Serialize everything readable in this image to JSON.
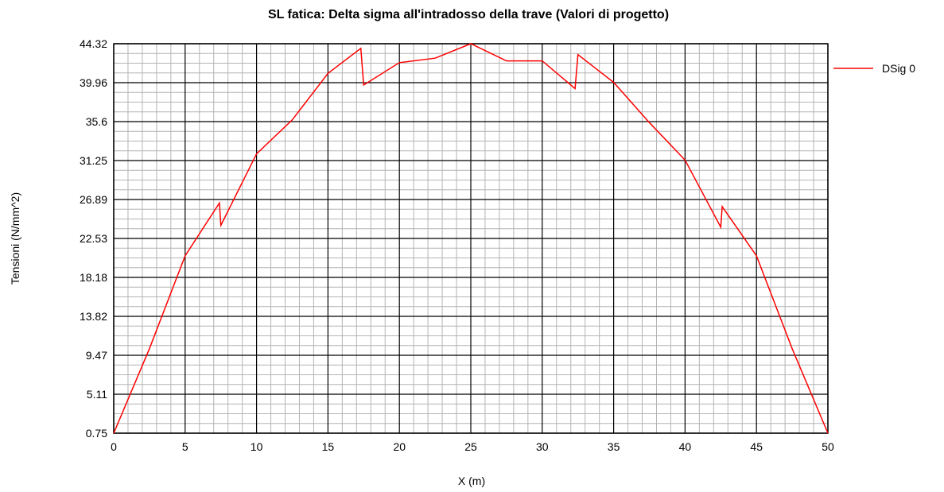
{
  "chart_data": {
    "type": "line",
    "title": "SL fatica: Delta sigma all'intradosso della trave (Valori di progetto)",
    "xlabel": "X (m)",
    "ylabel": "Tensioni (N/mm^2)",
    "xlim": [
      0,
      50
    ],
    "ylim": [
      0.75,
      44.32
    ],
    "x_ticks": [
      "0",
      "5",
      "10",
      "15",
      "20",
      "25",
      "30",
      "35",
      "40",
      "45",
      "50"
    ],
    "y_ticks": [
      "0.75",
      "5.11",
      "9.47",
      "13.82",
      "18.18",
      "22.53",
      "26.89",
      "31.25",
      "35.6",
      "39.96",
      "44.32"
    ],
    "grid": true,
    "legend_position": "top-right",
    "series": [
      {
        "name": "DSig 0",
        "color": "#ff0000",
        "x": [
          0,
          2.5,
          5,
          7.4,
          7.5,
          10,
          12.5,
          15,
          17.3,
          17.5,
          20,
          22.5,
          25,
          27.5,
          30,
          32.3,
          32.5,
          35,
          37.5,
          40,
          42.5,
          42.6,
          45,
          47.5,
          50
        ],
        "y": [
          0.75,
          10.2,
          20.6,
          26.5,
          24.0,
          32.0,
          35.8,
          41.0,
          43.8,
          39.7,
          42.2,
          42.7,
          44.32,
          42.4,
          42.4,
          39.3,
          43.1,
          40.0,
          35.5,
          31.3,
          23.8,
          26.1,
          20.6,
          10.2,
          0.75
        ]
      }
    ]
  },
  "colors": {
    "major_grid": "#000000",
    "minor_grid": "#b4b4b4",
    "series": "#ff0000"
  }
}
